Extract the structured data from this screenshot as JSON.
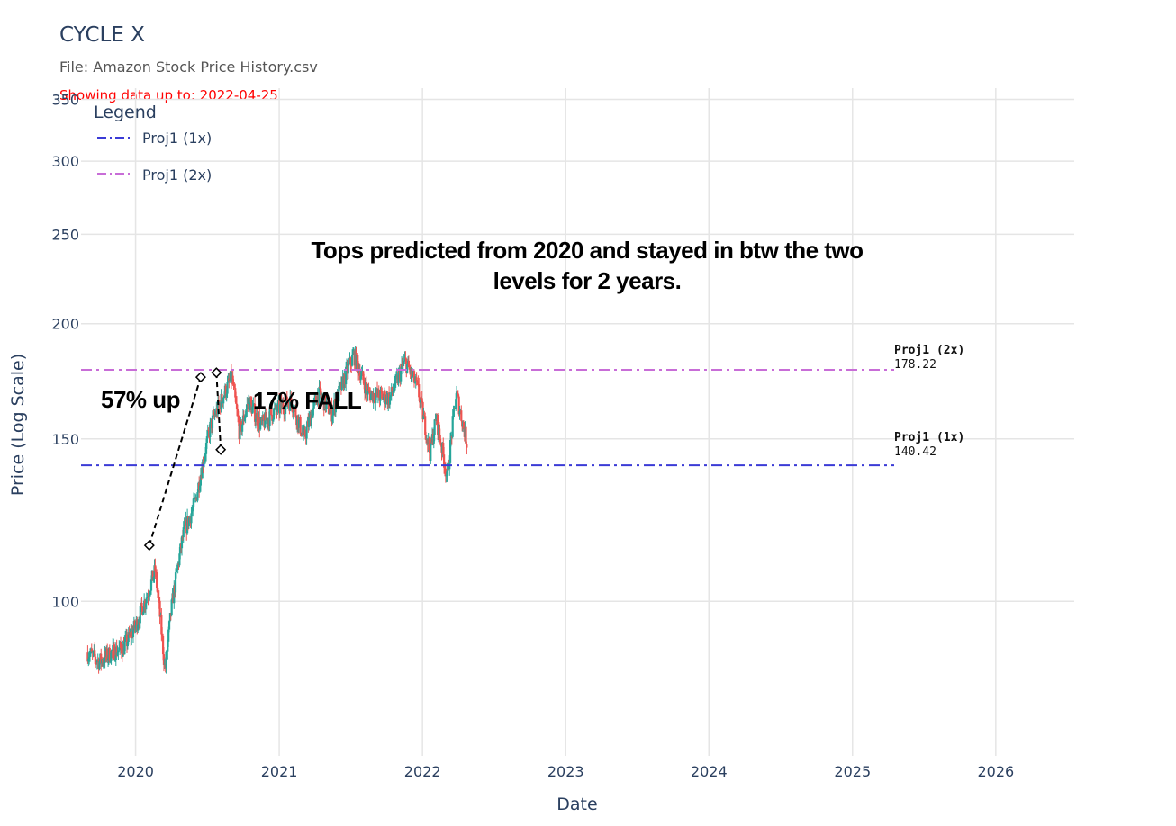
{
  "header": {
    "title": "CYCLE X",
    "file_label": "File: Amazon Stock Price History.csv",
    "status": "Showing data up to: 2022-04-25"
  },
  "colors": {
    "proj1x": "#3b3bd6",
    "proj2x": "#c86dd7",
    "up": "#26a69a",
    "down": "#ef5350",
    "grid": "#e5e5e5",
    "axis_text": "#2a3f5f"
  },
  "annotations": {
    "tops_line1": "Tops predicted from 2020 and stayed in btw the two",
    "tops_line2": "levels for 2 years.",
    "up_label": "57% up",
    "fall_label": "17% FALL"
  },
  "chart_data": {
    "type": "candlestick",
    "title": "CYCLE X",
    "xlabel": "Date",
    "ylabel": "Price (Log Scale)",
    "y_scale": "log",
    "ylim": [
      68,
      360
    ],
    "xlim": [
      "2019-08-15",
      "2026-07-20"
    ],
    "x_ticks": [
      "2020",
      "2021",
      "2022",
      "2023",
      "2024",
      "2025",
      "2026"
    ],
    "y_ticks": [
      100,
      150,
      200,
      250,
      300,
      350
    ],
    "grid": true,
    "legend_title": "Legend",
    "legend_position": "top-left",
    "levels": [
      {
        "name": "Proj1 (1x)",
        "value": 140.42,
        "label_value": "140.42",
        "style": "dash-dot",
        "color": "#3b3bd6"
      },
      {
        "name": "Proj1 (2x)",
        "value": 178.22,
        "label_value": "178.22",
        "style": "dash-dot",
        "color": "#c86dd7"
      }
    ],
    "price_path": [
      [
        "2019-09-01",
        88
      ],
      [
        "2019-10-01",
        86
      ],
      [
        "2019-11-01",
        88
      ],
      [
        "2019-12-01",
        89
      ],
      [
        "2020-01-01",
        94
      ],
      [
        "2020-02-01",
        102
      ],
      [
        "2020-02-20",
        108
      ],
      [
        "2020-03-16",
        84
      ],
      [
        "2020-04-01",
        98
      ],
      [
        "2020-05-01",
        118
      ],
      [
        "2020-06-01",
        128
      ],
      [
        "2020-07-10",
        155
      ],
      [
        "2020-09-02",
        175
      ],
      [
        "2020-09-22",
        152
      ],
      [
        "2020-10-15",
        165
      ],
      [
        "2020-11-15",
        155
      ],
      [
        "2020-12-15",
        160
      ],
      [
        "2021-02-01",
        165
      ],
      [
        "2021-03-05",
        150
      ],
      [
        "2021-04-10",
        168
      ],
      [
        "2021-05-15",
        160
      ],
      [
        "2021-07-10",
        185
      ],
      [
        "2021-08-15",
        168
      ],
      [
        "2021-10-10",
        166
      ],
      [
        "2021-11-18",
        182
      ],
      [
        "2021-12-20",
        170
      ],
      [
        "2022-01-20",
        145
      ],
      [
        "2022-02-05",
        158
      ],
      [
        "2022-03-05",
        136
      ],
      [
        "2022-03-28",
        168
      ],
      [
        "2022-04-25",
        148
      ]
    ],
    "trendlines": [
      {
        "from": [
          "2020-02-05",
          115
        ],
        "to": [
          "2020-06-15",
          175
        ]
      },
      {
        "from": [
          "2020-07-25",
          177
        ],
        "to": [
          "2020-08-05",
          146
        ]
      }
    ]
  }
}
